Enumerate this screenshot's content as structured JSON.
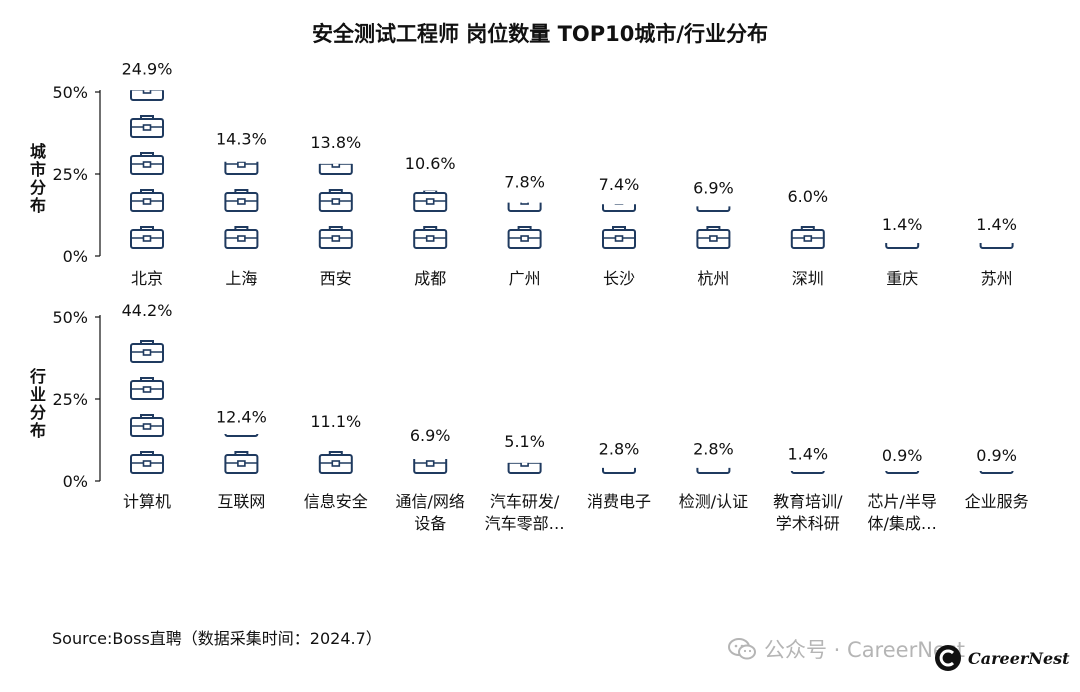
{
  "title": "安全测试工程师 岗位数量 TOP10城市/行业分布",
  "source": "Source:Boss直聘（数据采集时间：2024.7）",
  "watermark": "公众号 · CareerNest",
  "brand": "CareerNest",
  "colors": {
    "icon": "#1f3a5f",
    "axis": "#111111",
    "text": "#111111"
  },
  "chart_data": [
    {
      "type": "bar",
      "name": "城市分布",
      "ylabel": "城市分布",
      "ylim": [
        0,
        50
      ],
      "yticks": [
        "0%",
        "25%",
        "50%"
      ],
      "categories": [
        "北京",
        "上海",
        "西安",
        "成都",
        "广州",
        "长沙",
        "杭州",
        "深圳",
        "重庆",
        "苏州"
      ],
      "values": [
        24.9,
        14.3,
        13.8,
        10.6,
        7.8,
        7.4,
        6.9,
        6.0,
        1.4,
        1.4
      ],
      "labels": [
        "24.9%",
        "14.3%",
        "13.8%",
        "10.6%",
        "7.8%",
        "7.4%",
        "6.9%",
        "6.0%",
        "1.4%",
        "1.4%"
      ],
      "unit_per_icon": 5.6,
      "marker": "briefcase-icon"
    },
    {
      "type": "bar",
      "name": "行业分布",
      "ylabel": "行业分布",
      "ylim": [
        0,
        50
      ],
      "yticks": [
        "0%",
        "25%",
        "50%"
      ],
      "categories": [
        "计算机",
        "互联网",
        "信息安全",
        "通信/网络\n设备",
        "汽车研发/\n汽车零部…",
        "消费电子",
        "检测/认证",
        "教育培训/\n学术科研",
        "芯片/半导\n体/集成…",
        "企业服务"
      ],
      "values": [
        44.2,
        12.4,
        11.1,
        6.9,
        5.1,
        2.8,
        2.8,
        1.4,
        0.9,
        0.9
      ],
      "labels": [
        "44.2%",
        "12.4%",
        "11.1%",
        "6.9%",
        "5.1%",
        "2.8%",
        "2.8%",
        "1.4%",
        "0.9%",
        "0.9%"
      ],
      "unit_per_icon": 11.0,
      "marker": "briefcase-icon"
    }
  ]
}
